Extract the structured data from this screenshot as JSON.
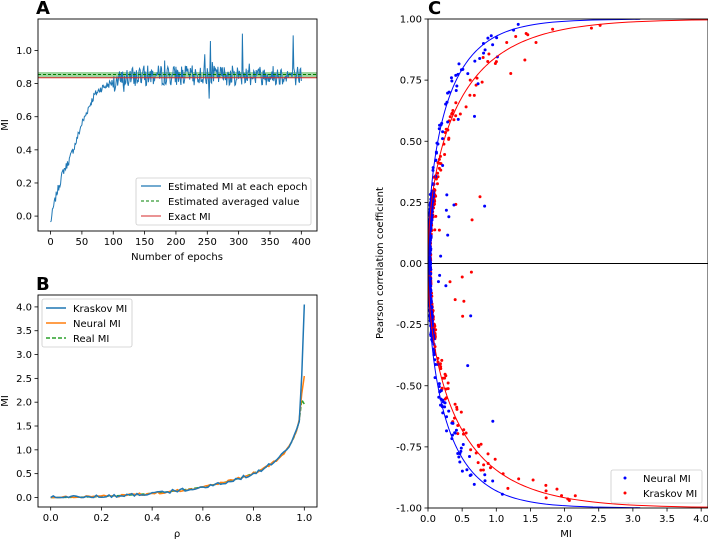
{
  "chart_data": [
    {
      "panel": "A",
      "type": "line",
      "xlabel": "Number of epochs",
      "ylabel": "MI",
      "xlim": [
        -20,
        425
      ],
      "ylim": [
        -0.09,
        1.19
      ],
      "xticks": [
        0,
        50,
        100,
        150,
        200,
        250,
        300,
        350,
        400
      ],
      "yticks": [
        0.0,
        0.2,
        0.4,
        0.6,
        0.8,
        1.0
      ],
      "legend_position": "lower-right",
      "series": [
        {
          "name": "Estimated MI at each epoch",
          "style": "solid",
          "color": "#1f77b4",
          "anchors": [
            [
              0,
              -0.04
            ],
            [
              5,
              0.06
            ],
            [
              10,
              0.14
            ],
            [
              15,
              0.2
            ],
            [
              20,
              0.27
            ],
            [
              25,
              0.3
            ],
            [
              30,
              0.34
            ],
            [
              35,
              0.39
            ],
            [
              40,
              0.44
            ],
            [
              45,
              0.5
            ],
            [
              50,
              0.56
            ],
            [
              55,
              0.6
            ],
            [
              60,
              0.65
            ],
            [
              65,
              0.69
            ],
            [
              70,
              0.73
            ],
            [
              75,
              0.75
            ],
            [
              80,
              0.77
            ],
            [
              85,
              0.78
            ],
            [
              90,
              0.79
            ],
            [
              95,
              0.8
            ],
            [
              100,
              0.81
            ],
            [
              110,
              0.82
            ],
            [
              120,
              0.83
            ],
            [
              150,
              0.85
            ],
            [
              200,
              0.85
            ],
            [
              250,
              0.85
            ],
            [
              300,
              0.85
            ],
            [
              350,
              0.85
            ],
            [
              400,
              0.85
            ]
          ],
          "noise": 0.06,
          "n_points": 401
        },
        {
          "name": "Estimated averaged value",
          "style": "dashed",
          "color": "#008000",
          "y": 0.855
        },
        {
          "name": "Exact MI",
          "style": "solid",
          "color": "#d62728",
          "y": 0.835
        }
      ],
      "band": {
        "color": "#2ca02c",
        "y0": 0.835,
        "y1": 0.87
      }
    },
    {
      "panel": "B",
      "type": "line",
      "xlabel": "ρ",
      "ylabel": "MI",
      "xlim": [
        -0.05,
        1.05
      ],
      "ylim": [
        -0.2,
        4.25
      ],
      "xticks": [
        0.0,
        0.2,
        0.4,
        0.6,
        0.8,
        1.0
      ],
      "yticks": [
        0.0,
        0.5,
        1.0,
        1.5,
        2.0,
        2.5,
        3.0,
        3.5,
        4.0
      ],
      "legend_position": "top-left",
      "series": [
        {
          "name": "Kraskov MI",
          "style": "solid",
          "color": "#1f77b4",
          "noise": 0.035,
          "end": 4.05
        },
        {
          "name": "Neural MI",
          "style": "solid",
          "color": "#ff7f0e",
          "noise": 0.025,
          "end": 2.55
        },
        {
          "name": "Real MI",
          "style": "dashed",
          "color": "#2ca02c",
          "noise": 0.0,
          "end": 1.96
        }
      ]
    },
    {
      "panel": "C",
      "type": "scatter",
      "xlabel": "MI",
      "ylabel": "Pearson correlation coefficient",
      "xlim": [
        0.0,
        4.1
      ],
      "ylim": [
        -1.0,
        1.0
      ],
      "xticks": [
        0.0,
        0.5,
        1.0,
        1.5,
        2.0,
        2.5,
        3.0,
        3.5,
        4.0
      ],
      "yticks": [
        -1.0,
        -0.75,
        -0.5,
        -0.25,
        0.0,
        0.25,
        0.5,
        0.75,
        1.0
      ],
      "legend_position": "lower-right",
      "series": [
        {
          "name": "Neural MI",
          "marker": "dot",
          "color": "#0000ff",
          "scale": 1.0,
          "n_points": 380
        },
        {
          "name": "Kraskov MI",
          "marker": "dot",
          "color": "#ff0000",
          "scale": 1.6,
          "n_points": 420
        }
      ],
      "fit_curves": [
        {
          "color": "#0000ff",
          "formula": "x = -0.5*ln(1-r^2)"
        },
        {
          "color": "#ff0000",
          "formula": "x = -0.8*ln(1-r^2)"
        }
      ]
    }
  ]
}
